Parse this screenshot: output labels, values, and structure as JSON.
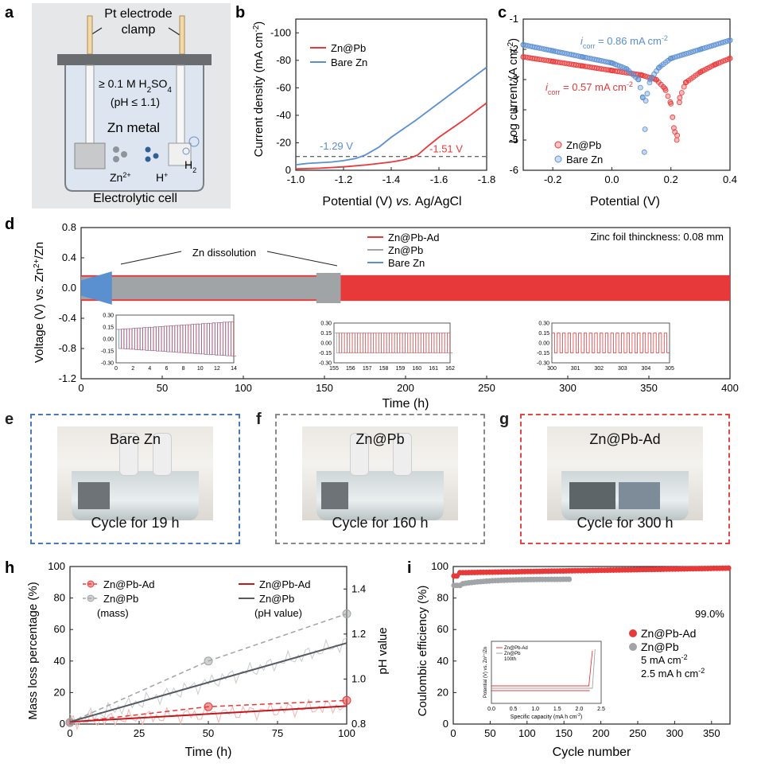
{
  "panels": {
    "a": {
      "letter": "a",
      "electrode_label_line1": "Pt electrode",
      "electrode_label_line2": "clamp",
      "acid_prefix": "≥ 0.1 M H",
      "acid_sub": "2",
      "acid_suffix": "SO",
      "acid_sub2": "4",
      "ph_label": "(pH ≤ 1.1)",
      "metal_label": "Zn metal",
      "zn_ion": "Zn",
      "zn_sup": "2+",
      "h_ion": "H",
      "h_sup": "+",
      "h2": "H",
      "h2_sub": "2",
      "caption": "Electrolytic cell"
    },
    "b": {
      "letter": "b"
    },
    "c": {
      "letter": "c"
    },
    "d": {
      "letter": "d"
    },
    "e": {
      "letter": "e",
      "title": "Bare Zn",
      "caption": "Cycle for 19 h",
      "color": "#4a78b8"
    },
    "f": {
      "letter": "f",
      "title": "Zn@Pb",
      "caption": "Cycle for 160 h",
      "color": "#8a8a8a"
    },
    "g": {
      "letter": "g",
      "title": "Zn@Pb-Ad",
      "caption": "Cycle for 300 h",
      "color": "#e04848"
    },
    "h": {
      "letter": "h"
    },
    "i": {
      "letter": "i"
    }
  },
  "colors": {
    "red": "#e8393a",
    "blue": "#5a8fd0",
    "gray": "#a0a4a6",
    "darkred": "#c0181c",
    "darkgray": "#555b60"
  },
  "chart_data": [
    {
      "id": "b",
      "type": "line",
      "xlabel_prefix": "Potential (V) ",
      "xlabel_italic": "vs.",
      "xlabel_suffix": " Ag/AgCl",
      "ylabel": "Current density (mA cm",
      "ylabel_sup": "-2",
      "ylabel_end": ")",
      "xlim": [
        -1.0,
        -1.8
      ],
      "ylim": [
        0,
        -110
      ],
      "xticks": [
        "-1.0",
        "-1.2",
        "-1.4",
        "-1.6",
        "-1.8"
      ],
      "yticks": [
        "0",
        "-20",
        "-40",
        "-60",
        "-80",
        "-100"
      ],
      "series": [
        {
          "name": "Zn@Pb",
          "color": "#e8393a",
          "x": [
            -1.0,
            -1.1,
            -1.2,
            -1.3,
            -1.4,
            -1.45,
            -1.48,
            -1.51,
            -1.55,
            -1.6,
            -1.7,
            -1.8
          ],
          "y": [
            -1,
            -1.5,
            -2.5,
            -4,
            -6,
            -7.5,
            -9,
            -11,
            -17,
            -24,
            -36,
            -49
          ]
        },
        {
          "name": "Bare Zn",
          "color": "#5a8fd0",
          "x": [
            -1.0,
            -1.05,
            -1.1,
            -1.15,
            -1.2,
            -1.25,
            -1.29,
            -1.35,
            -1.4,
            -1.5,
            -1.6,
            -1.7,
            -1.8
          ],
          "y": [
            -4,
            -5,
            -5.5,
            -6,
            -7,
            -8.5,
            -11,
            -17,
            -24,
            -36,
            -49,
            -62,
            -75
          ]
        }
      ],
      "reference_line": -10,
      "annotations": [
        {
          "text": "-1.29 V",
          "x": -1.17,
          "y": -15,
          "color": "#5a8fd0"
        },
        {
          "text": "-1.51 V",
          "x": -1.63,
          "y": -13,
          "color": "#e8393a"
        }
      ]
    },
    {
      "id": "c",
      "type": "scatter",
      "xlabel": "Potential (V)",
      "ylabel": "Log current (A cm",
      "ylabel_sup": "-2",
      "ylabel_end": ")",
      "xlim": [
        -0.3,
        0.4
      ],
      "ylim": [
        -6,
        -1
      ],
      "xticks": [
        "-0.2",
        "0.0",
        "0.2",
        "0.4"
      ],
      "yticks": [
        "-6",
        "-5",
        "-4",
        "-3",
        "-2",
        "-1"
      ],
      "series": [
        {
          "name": "Zn@Pb",
          "color": "#e8393a",
          "x": [
            -0.3,
            -0.2,
            -0.1,
            0.0,
            0.1,
            0.15,
            0.18,
            0.2,
            0.21,
            0.22,
            0.23,
            0.25,
            0.3,
            0.35,
            0.4
          ],
          "y": [
            -2.25,
            -2.4,
            -2.55,
            -2.7,
            -2.85,
            -3.0,
            -3.3,
            -3.8,
            -4.6,
            -5.0,
            -3.6,
            -3.1,
            -2.75,
            -2.5,
            -2.3
          ]
        },
        {
          "name": "Bare Zn",
          "color": "#5a8fd0",
          "x": [
            -0.3,
            -0.2,
            -0.1,
            0.0,
            0.05,
            0.09,
            0.105,
            0.11,
            0.115,
            0.13,
            0.16,
            0.2,
            0.3,
            0.4
          ],
          "y": [
            -1.85,
            -2.05,
            -2.25,
            -2.45,
            -2.65,
            -3.0,
            -3.6,
            -5.4,
            -3.7,
            -3.0,
            -2.6,
            -2.3,
            -2.0,
            -1.7
          ]
        }
      ],
      "annotations": [
        {
          "i": "i",
          "sub": "corr",
          "text": " = 0.86 mA cm",
          "sup": "-2",
          "color": "#5a8fd0"
        },
        {
          "i": "i",
          "sub": "corr",
          "text": " = 0.57 mA cm",
          "sup": "-2",
          "color": "#e8393a"
        }
      ]
    },
    {
      "id": "d",
      "type": "line",
      "xlabel": "Time (h)",
      "ylabel": "Voltage (V) vs. Zn",
      "ylabel_sup": "2+",
      "ylabel_end": "/Zn",
      "xlim": [
        0,
        400
      ],
      "ylim": [
        -1.2,
        0.8
      ],
      "xticks": [
        "0",
        "50",
        "100",
        "150",
        "200",
        "250",
        "300",
        "350",
        "400"
      ],
      "yticks": [
        "-1.2",
        "-0.8",
        "-0.4",
        "0.0",
        "0.4",
        "0.8"
      ],
      "series": [
        {
          "name": "Zn@Pb-Ad",
          "color": "#e8393a",
          "t_start": 0,
          "t_end": 400,
          "amplitude": 0.17
        },
        {
          "name": "Zn@Pb",
          "color": "#a0a4a6",
          "t_start": 0,
          "t_end": 160,
          "amplitude": 0.15
        },
        {
          "name": "Bare Zn",
          "color": "#5a8fd0",
          "t_start": 0,
          "t_end": 19,
          "amplitude": 0.2
        }
      ],
      "annotations": {
        "dissolution": "Zn dissolution",
        "thickness": "Zinc foil thinckness: 0.08 mm"
      },
      "insets": [
        {
          "xticks": [
            "0",
            "2",
            "4",
            "6",
            "8",
            "10",
            "12",
            "14"
          ],
          "yticks": [
            "0.30",
            "0.15",
            "0.00",
            "-0.15",
            "-0.30"
          ]
        },
        {
          "xticks": [
            "155",
            "156",
            "157",
            "158",
            "159",
            "160",
            "161",
            "162"
          ],
          "yticks": [
            "0.30",
            "0.15",
            "0.00",
            "-0.15",
            "-0.30"
          ]
        },
        {
          "xticks": [
            "300",
            "301",
            "302",
            "303",
            "304",
            "305"
          ],
          "yticks": [
            "0.30",
            "0.15",
            "0.00",
            "-0.15",
            "-0.30"
          ]
        }
      ]
    },
    {
      "id": "h",
      "type": "line",
      "xlabel": "Time (h)",
      "ylabel": "Mass loss percentage (%)",
      "ylabel_right": "pH value",
      "xlim": [
        0,
        100
      ],
      "ylim": [
        0,
        100
      ],
      "ylim_right": [
        0.8,
        1.5
      ],
      "xticks": [
        "0",
        "25",
        "50",
        "75",
        "100"
      ],
      "yticks": [
        "0",
        "20",
        "40",
        "60",
        "80",
        "100"
      ],
      "yticks_right": [
        "0.8",
        "1.0",
        "1.2",
        "1.4"
      ],
      "series": [
        {
          "name": "Zn@Pb-Ad",
          "kind": "mass",
          "color": "#e8393a",
          "x": [
            0,
            50,
            100
          ],
          "y": [
            1,
            11,
            15
          ]
        },
        {
          "name": "Zn@Pb",
          "kind": "mass",
          "color": "#a0a4a6",
          "x": [
            0,
            50,
            100
          ],
          "y": [
            1,
            40,
            70
          ]
        },
        {
          "name": "Zn@Pb-Ad",
          "kind": "pH",
          "color": "#c0181c",
          "x": [
            0,
            100
          ],
          "y": [
            0.81,
            0.88
          ]
        },
        {
          "name": "Zn@Pb",
          "kind": "pH",
          "color": "#555b60",
          "x": [
            0,
            100
          ],
          "y": [
            0.81,
            1.16
          ]
        }
      ],
      "legend_left_note": "(mass)",
      "legend_right_note": "(pH value)"
    },
    {
      "id": "i",
      "type": "scatter",
      "xlabel": "Cycle number",
      "ylabel": "Coulombic efficiency (%)",
      "xlim": [
        0,
        375
      ],
      "ylim": [
        0,
        100
      ],
      "xticks": [
        "0",
        "50",
        "100",
        "150",
        "200",
        "250",
        "300",
        "350"
      ],
      "yticks": [
        "0",
        "20",
        "40",
        "60",
        "80",
        "100"
      ],
      "series": [
        {
          "name": "Zn@Pb-Ad",
          "color": "#e8393a",
          "x_start": 1,
          "x_end": 375,
          "y": 99.0
        },
        {
          "name": "Zn@Pb",
          "color": "#a0a4a6",
          "x_start": 1,
          "x_end": 160,
          "y": 92
        }
      ],
      "label_value": "99.0%",
      "conditions": [
        "5 mA cm",
        "2.5 mA h cm"
      ],
      "conditions_sup": "-2",
      "inset": {
        "xlabel": "Specific capacity (mA h cm",
        "xlabel_sup": "-2",
        "xlabel_end": ")",
        "ylabel": "Potential (V) vs. Zn",
        "ylabel_sup": "2+",
        "ylabel_end": "/Zn",
        "xticks": [
          "0.0",
          "0.5",
          "1.0",
          "1.5",
          "2.0",
          "2.5"
        ],
        "legend": [
          "Zn@Pb-Ad",
          "Zn@Pb"
        ],
        "note": "100th"
      }
    }
  ]
}
